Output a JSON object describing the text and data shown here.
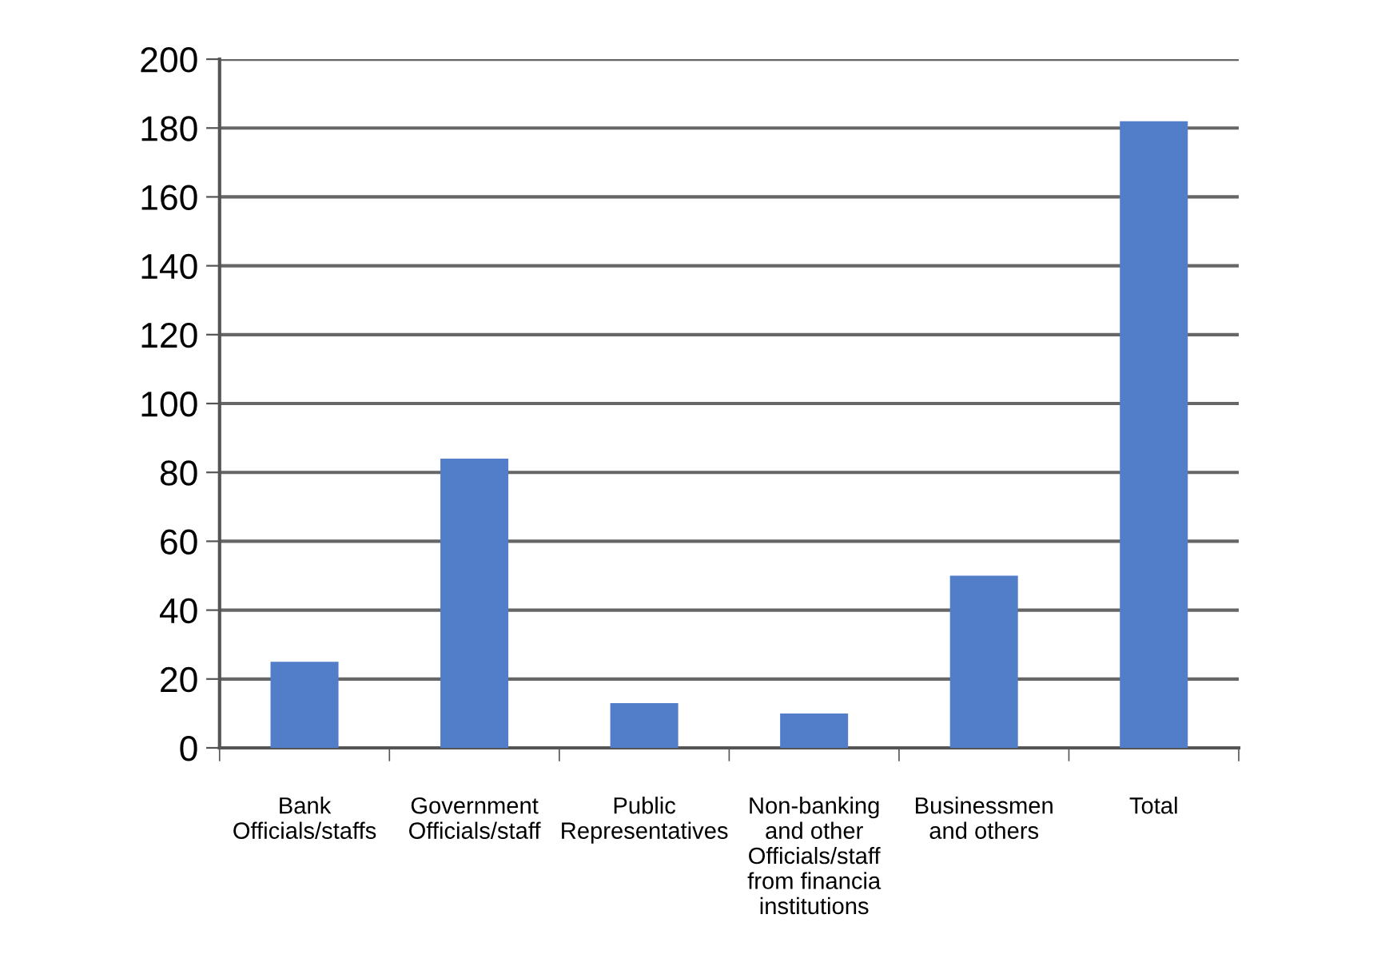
{
  "chart_data": {
    "type": "bar",
    "categories": [
      "Bank\nOfficials/staffs",
      "Government\nOfficials/staff",
      "Public\nRepresentatives",
      "Non-banking\nand other\nOfficials/staff\nfrom financia\ninstitutions",
      "Businessmen\nand others",
      "Total"
    ],
    "values": [
      25,
      84,
      13,
      10,
      50,
      182
    ],
    "color": "#517dc9",
    "ylim": [
      0,
      200
    ],
    "yticks": [
      0,
      20,
      40,
      60,
      80,
      100,
      120,
      140,
      160,
      180,
      200
    ],
    "grid": "y",
    "legend": false
  }
}
